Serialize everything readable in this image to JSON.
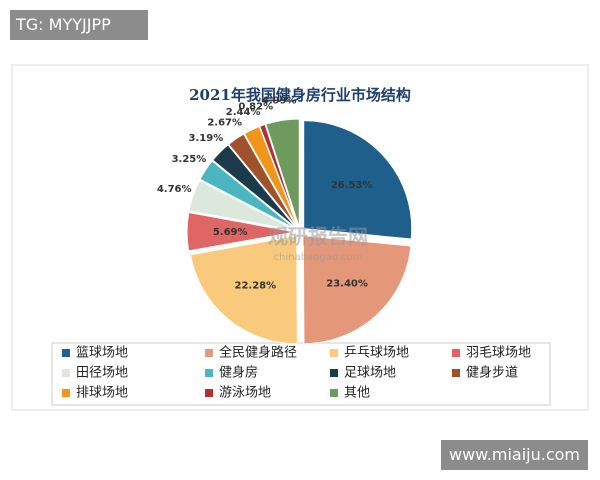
{
  "chart_data": {
    "type": "pie",
    "title": "2021年我国健身房行业市场结构",
    "categories": [
      "篮球场地",
      "全民健身路径",
      "乒乓球场地",
      "羽毛球场地",
      "田径场地",
      "健身房",
      "足球场地",
      "健身步道",
      "排球场地",
      "游泳场地",
      "其他"
    ],
    "values": [
      26.53,
      23.4,
      22.28,
      5.69,
      4.76,
      3.25,
      3.19,
      2.67,
      2.44,
      0.82,
      4.99
    ],
    "value_labels": [
      "26.53%",
      "23.40%",
      "22.28%",
      "5.69%",
      "4.76%",
      "3.25%",
      "3.19%",
      "2.67%",
      "2.44%",
      "0.82%",
      "4.99%"
    ],
    "colors": [
      "#1f5f8b",
      "#e5977a",
      "#f9c97c",
      "#e06666",
      "#dde8dc",
      "#4bb6c2",
      "#1b3a4b",
      "#a0522d",
      "#f0961c",
      "#b03030",
      "#6e9a5e"
    ],
    "legend": "bottom"
  },
  "watermarks": {
    "tag": "TG: MYYJJPP",
    "site": "www.miaiju.com",
    "logo": "观研报告网",
    "logo_url": "chinabaogao.com"
  }
}
